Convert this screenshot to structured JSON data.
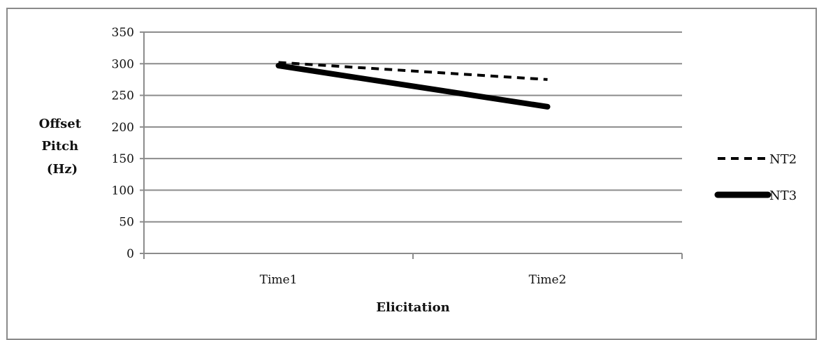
{
  "chart_data": {
    "type": "line",
    "title": "",
    "categories": [
      "Time1",
      "Time2"
    ],
    "xlabel": "Elicitation",
    "ylabel_lines": [
      "Offset",
      "Pitch",
      "(Hz)"
    ],
    "ylim": [
      0,
      350
    ],
    "yticks": [
      0,
      50,
      100,
      150,
      200,
      250,
      300,
      350
    ],
    "grid": true,
    "legend_position": "right",
    "series": [
      {
        "name": "NT2",
        "values": [
          302,
          275
        ],
        "style": "dashed",
        "color": "#000000"
      },
      {
        "name": "NT3",
        "values": [
          297,
          232
        ],
        "style": "solid-thick",
        "color": "#000000"
      }
    ]
  }
}
